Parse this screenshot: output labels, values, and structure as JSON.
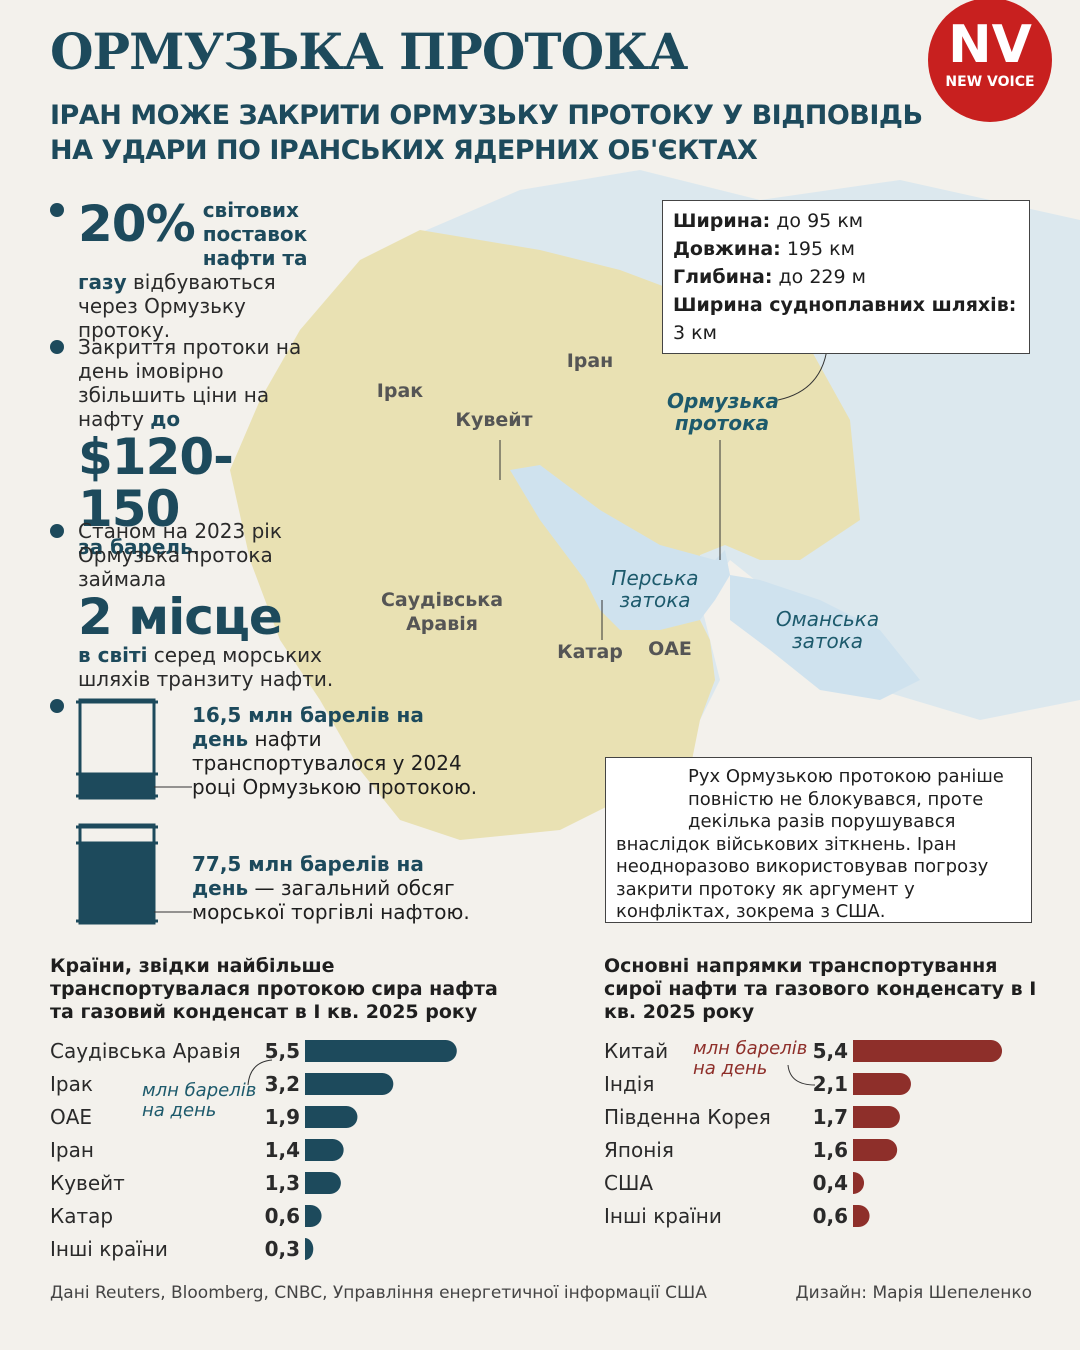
{
  "header": {
    "title": "ОРМУЗЬКА ПРОТОКА",
    "subtitle_lines": [
      "ІРАН МОЖЕ ЗАКРИТИ ОРМУЗЬКУ ПРОТОКУ У ВІДПОВІДЬ",
      "НА УДАРИ ПО ІРАНСЬКИХ ЯДЕРНИХ ОБ'ЄКТАХ"
    ],
    "logo": "NV",
    "logo_sub": "NEW VOICE"
  },
  "facts": [
    {
      "big": "20%",
      "bold": "світових поставок нафти та газу",
      "text": "відбуваються через Ормузьку протоку."
    },
    {
      "text": "Закриття протоки на день імовірно збільшить ціни на нафту",
      "bold": "до",
      "big": "$120-150",
      "bold2": "за барель",
      "end": "."
    },
    {
      "text": "Станом на 2023 рік Ормузька протока займала",
      "big": "2 місце",
      "bold": "в світі",
      "text2": "серед морських шляхів транзиту нафти."
    }
  ],
  "barrels": [
    {
      "bold": "16,5 млн барелів на день",
      "text": "нафти транспортувалося у 2024 році Ормузькою протокою."
    },
    {
      "bold": "77,5 млн барелів на день",
      "text": "— загальний обсяг морської торгівлі нафтою."
    }
  ],
  "map_labels": [
    "Іран",
    "Ірак",
    "Кувейт",
    "Саудівська Аравія",
    "Катар",
    "ОАЕ"
  ],
  "water_labels": [
    "Ормузька протока",
    "Перська затока",
    "Оманська затока"
  ],
  "stats": [
    {
      "label": "Ширина:",
      "value": "до 95 км"
    },
    {
      "label": "Довжина:",
      "value": "195 км"
    },
    {
      "label": "Глибина:",
      "value": "до 229 м"
    },
    {
      "label": "Ширина судноплавних шляхів:",
      "value": "3 км"
    }
  ],
  "note": "Рух Ормузькою протокою раніше повністю не блокувався, проте декілька разів порушувався внаслідок військових зіткнень. Іран неодноразово використовував погрозу закрити протоку як аргумент у конфліктах, зокрема з США.",
  "chart_data": [
    {
      "type": "bar",
      "title": "Країни, звідки найбільше транспортувалася протокою сира нафта та газовий конденсат в I кв. 2025 року",
      "categories": [
        "Саудівська Аравія",
        "Ірак",
        "ОАЕ",
        "Іран",
        "Кувейт",
        "Катар",
        "Інші країни"
      ],
      "values": [
        5.5,
        3.2,
        1.9,
        1.4,
        1.3,
        0.6,
        0.3
      ],
      "value_labels": [
        "5,5",
        "3,2",
        "1,9",
        "1,4",
        "1,3",
        "0,6",
        "0,3"
      ],
      "unit_note": "млн барелів на день",
      "color": "#1d4a5c"
    },
    {
      "type": "bar",
      "title": "Основні напрямки транспортування сирої нафти та газового конденсату в I кв. 2025 року",
      "categories": [
        "Китай",
        "Індія",
        "Південна Корея",
        "Японія",
        "США",
        "Інші країни"
      ],
      "values": [
        5.4,
        2.1,
        1.7,
        1.6,
        0.4,
        0.6
      ],
      "value_labels": [
        "5,4",
        "2,1",
        "1,7",
        "1,6",
        "0,4",
        "0,6"
      ],
      "unit_note": "млн барелів на день",
      "color": "#8e2f2a"
    }
  ],
  "footer": {
    "source": "Дані Reuters, Bloomberg, CNBC, Управління енергетичної інформації США",
    "credit": "Дизайн: Марія Шепеленко"
  }
}
